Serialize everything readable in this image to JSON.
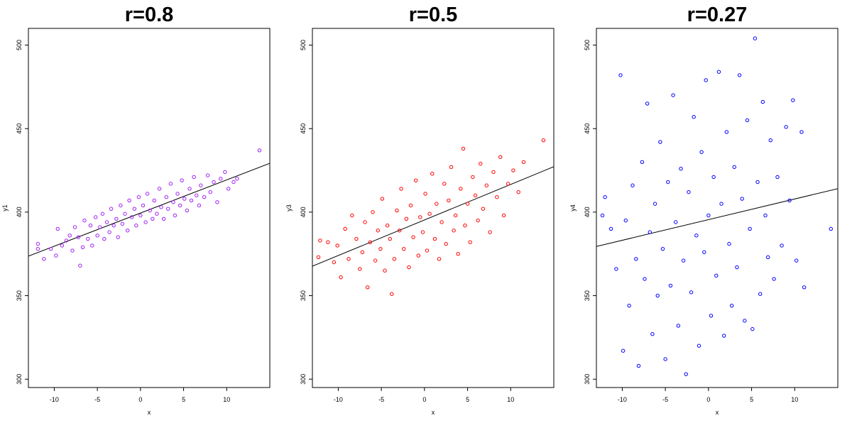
{
  "chart_data": [
    {
      "type": "scatter",
      "title": "r=0.8",
      "xlabel": "x",
      "ylabel": "y1",
      "xlim": [
        -13,
        15
      ],
      "ylim": [
        295,
        510
      ],
      "x_ticks": [
        -10,
        -5,
        0,
        5,
        10
      ],
      "y_ticks": [
        300,
        350,
        400,
        450,
        500
      ],
      "grid": false,
      "legend": "none",
      "point_color": "#a020f0",
      "series": [
        {
          "points": [
            [
              -11.9,
              378
            ],
            [
              -11.9,
              381
            ],
            [
              -11.2,
              372
            ],
            [
              -10.4,
              378
            ],
            [
              -9.8,
              374
            ],
            [
              -9.6,
              390
            ],
            [
              -9.1,
              380
            ],
            [
              -8.6,
              383
            ],
            [
              -8.2,
              386
            ],
            [
              -7.9,
              377
            ],
            [
              -7.6,
              391
            ],
            [
              -7.2,
              385
            ],
            [
              -7.0,
              368
            ],
            [
              -6.7,
              379
            ],
            [
              -6.5,
              395
            ],
            [
              -6.1,
              384
            ],
            [
              -5.8,
              392
            ],
            [
              -5.6,
              380
            ],
            [
              -5.2,
              397
            ],
            [
              -5.0,
              386
            ],
            [
              -4.7,
              391
            ],
            [
              -4.4,
              399
            ],
            [
              -4.2,
              384
            ],
            [
              -3.9,
              394
            ],
            [
              -3.6,
              388
            ],
            [
              -3.4,
              402
            ],
            [
              -3.1,
              392
            ],
            [
              -2.8,
              396
            ],
            [
              -2.6,
              385
            ],
            [
              -2.3,
              404
            ],
            [
              -2.1,
              393
            ],
            [
              -1.8,
              399
            ],
            [
              -1.5,
              389
            ],
            [
              -1.3,
              407
            ],
            [
              -1.0,
              397
            ],
            [
              -0.7,
              402
            ],
            [
              -0.5,
              392
            ],
            [
              -0.2,
              409
            ],
            [
              0.0,
              398
            ],
            [
              0.3,
              404
            ],
            [
              0.6,
              394
            ],
            [
              0.8,
              411
            ],
            [
              1.1,
              401
            ],
            [
              1.4,
              396
            ],
            [
              1.6,
              407
            ],
            [
              1.9,
              399
            ],
            [
              2.2,
              414
            ],
            [
              2.4,
              403
            ],
            [
              2.7,
              396
            ],
            [
              3.0,
              409
            ],
            [
              3.2,
              402
            ],
            [
              3.5,
              417
            ],
            [
              3.8,
              406
            ],
            [
              4.0,
              398
            ],
            [
              4.3,
              411
            ],
            [
              4.6,
              404
            ],
            [
              4.8,
              419
            ],
            [
              5.1,
              408
            ],
            [
              5.4,
              401
            ],
            [
              5.7,
              414
            ],
            [
              5.9,
              407
            ],
            [
              6.2,
              421
            ],
            [
              6.5,
              410
            ],
            [
              6.8,
              404
            ],
            [
              7.0,
              416
            ],
            [
              7.4,
              409
            ],
            [
              7.8,
              422
            ],
            [
              8.1,
              412
            ],
            [
              8.5,
              418
            ],
            [
              8.9,
              406
            ],
            [
              9.3,
              420
            ],
            [
              9.8,
              424
            ],
            [
              10.2,
              414
            ],
            [
              10.8,
              418
            ],
            [
              11.2,
              420
            ],
            [
              13.8,
              437
            ]
          ]
        }
      ]
    },
    {
      "type": "scatter",
      "title": "r=0.5",
      "xlabel": "x",
      "ylabel": "y3",
      "xlim": [
        -13,
        15
      ],
      "ylim": [
        295,
        510
      ],
      "x_ticks": [
        -10,
        -5,
        0,
        5,
        10
      ],
      "y_ticks": [
        300,
        350,
        400,
        450,
        500
      ],
      "grid": false,
      "legend": "none",
      "point_color": "#ff0000",
      "series": [
        {
          "points": [
            [
              -12.3,
              373
            ],
            [
              -12.1,
              383
            ],
            [
              -11.2,
              382
            ],
            [
              -10.5,
              370
            ],
            [
              -10.1,
              380
            ],
            [
              -9.7,
              361
            ],
            [
              -9.2,
              390
            ],
            [
              -8.8,
              372
            ],
            [
              -8.4,
              398
            ],
            [
              -7.9,
              384
            ],
            [
              -7.5,
              366
            ],
            [
              -7.2,
              376
            ],
            [
              -6.9,
              394
            ],
            [
              -6.6,
              355
            ],
            [
              -6.3,
              382
            ],
            [
              -6.0,
              400
            ],
            [
              -5.7,
              371
            ],
            [
              -5.4,
              389
            ],
            [
              -5.1,
              378
            ],
            [
              -4.9,
              408
            ],
            [
              -4.6,
              365
            ],
            [
              -4.3,
              392
            ],
            [
              -4.0,
              384
            ],
            [
              -3.8,
              351
            ],
            [
              -3.5,
              372
            ],
            [
              -3.2,
              401
            ],
            [
              -2.9,
              389
            ],
            [
              -2.7,
              414
            ],
            [
              -2.4,
              378
            ],
            [
              -2.1,
              396
            ],
            [
              -1.8,
              367
            ],
            [
              -1.6,
              404
            ],
            [
              -1.3,
              385
            ],
            [
              -1.0,
              419
            ],
            [
              -0.7,
              374
            ],
            [
              -0.5,
              397
            ],
            [
              -0.2,
              388
            ],
            [
              0.1,
              411
            ],
            [
              0.3,
              377
            ],
            [
              0.6,
              399
            ],
            [
              0.9,
              423
            ],
            [
              1.2,
              384
            ],
            [
              1.4,
              405
            ],
            [
              1.7,
              372
            ],
            [
              2.0,
              394
            ],
            [
              2.3,
              417
            ],
            [
              2.5,
              381
            ],
            [
              2.8,
              407
            ],
            [
              3.1,
              427
            ],
            [
              3.4,
              389
            ],
            [
              3.6,
              398
            ],
            [
              3.9,
              375
            ],
            [
              4.2,
              414
            ],
            [
              4.5,
              438
            ],
            [
              4.7,
              392
            ],
            [
              5.0,
              405
            ],
            [
              5.3,
              382
            ],
            [
              5.6,
              421
            ],
            [
              5.9,
              410
            ],
            [
              6.2,
              395
            ],
            [
              6.5,
              429
            ],
            [
              6.8,
              402
            ],
            [
              7.2,
              416
            ],
            [
              7.6,
              388
            ],
            [
              8.0,
              424
            ],
            [
              8.4,
              409
            ],
            [
              8.8,
              433
            ],
            [
              9.2,
              398
            ],
            [
              9.7,
              417
            ],
            [
              10.3,
              425
            ],
            [
              10.9,
              412
            ],
            [
              11.5,
              430
            ],
            [
              13.8,
              443
            ]
          ]
        }
      ]
    },
    {
      "type": "scatter",
      "title": "r=0.27",
      "xlabel": "x",
      "ylabel": "y4",
      "xlim": [
        -13,
        15
      ],
      "ylim": [
        295,
        510
      ],
      "x_ticks": [
        -10,
        -5,
        0,
        5,
        10
      ],
      "y_ticks": [
        300,
        350,
        400,
        450,
        500
      ],
      "grid": false,
      "legend": "none",
      "point_color": "#0000ff",
      "series": [
        {
          "points": [
            [
              -12.3,
              398
            ],
            [
              -12.0,
              409
            ],
            [
              -11.3,
              390
            ],
            [
              -10.7,
              366
            ],
            [
              -10.2,
              482
            ],
            [
              -9.9,
              317
            ],
            [
              -9.6,
              395
            ],
            [
              -9.2,
              344
            ],
            [
              -8.8,
              416
            ],
            [
              -8.4,
              372
            ],
            [
              -8.1,
              308
            ],
            [
              -7.7,
              430
            ],
            [
              -7.4,
              360
            ],
            [
              -7.1,
              465
            ],
            [
              -6.8,
              388
            ],
            [
              -6.5,
              327
            ],
            [
              -6.2,
              405
            ],
            [
              -5.9,
              350
            ],
            [
              -5.6,
              442
            ],
            [
              -5.3,
              378
            ],
            [
              -5.0,
              312
            ],
            [
              -4.7,
              418
            ],
            [
              -4.4,
              356
            ],
            [
              -4.1,
              470
            ],
            [
              -3.8,
              394
            ],
            [
              -3.5,
              332
            ],
            [
              -3.2,
              426
            ],
            [
              -2.9,
              371
            ],
            [
              -2.6,
              303
            ],
            [
              -2.3,
              412
            ],
            [
              -2.0,
              352
            ],
            [
              -1.7,
              457
            ],
            [
              -1.4,
              386
            ],
            [
              -1.1,
              320
            ],
            [
              -0.8,
              436
            ],
            [
              -0.5,
              376
            ],
            [
              -0.3,
              479
            ],
            [
              0.0,
              398
            ],
            [
              0.3,
              338
            ],
            [
              0.6,
              421
            ],
            [
              0.9,
              362
            ],
            [
              1.2,
              484
            ],
            [
              1.5,
              405
            ],
            [
              1.8,
              326
            ],
            [
              2.1,
              448
            ],
            [
              2.4,
              381
            ],
            [
              2.7,
              344
            ],
            [
              3.0,
              427
            ],
            [
              3.3,
              367
            ],
            [
              3.6,
              482
            ],
            [
              3.9,
              408
            ],
            [
              4.2,
              335
            ],
            [
              4.5,
              455
            ],
            [
              4.8,
              390
            ],
            [
              5.1,
              330
            ],
            [
              5.4,
              504
            ],
            [
              5.7,
              418
            ],
            [
              6.0,
              351
            ],
            [
              6.3,
              466
            ],
            [
              6.6,
              398
            ],
            [
              6.9,
              373
            ],
            [
              7.2,
              443
            ],
            [
              7.6,
              360
            ],
            [
              8.0,
              421
            ],
            [
              8.5,
              380
            ],
            [
              9.0,
              451
            ],
            [
              9.4,
              407
            ],
            [
              9.8,
              467
            ],
            [
              10.2,
              371
            ],
            [
              10.8,
              448
            ],
            [
              11.1,
              355
            ],
            [
              14.2,
              390
            ]
          ]
        }
      ]
    }
  ]
}
